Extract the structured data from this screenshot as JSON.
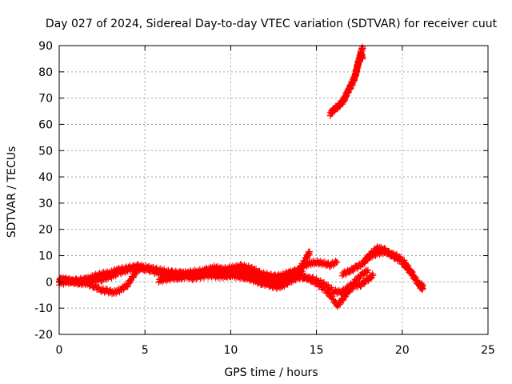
{
  "chart_data": {
    "type": "scatter",
    "title": "Day 027 of 2024, Sidereal Day-to-day VTEC variation (SDTVAR) for receiver cuut",
    "xlabel": "GPS time / hours",
    "ylabel": "SDTVAR / TECUs",
    "xlim": [
      0,
      25
    ],
    "ylim": [
      -20,
      90
    ],
    "xticks": [
      0,
      5,
      10,
      15,
      20,
      25
    ],
    "yticks": [
      -20,
      -10,
      0,
      10,
      20,
      30,
      40,
      50,
      60,
      70,
      80,
      90
    ],
    "grid": true,
    "marker": "+",
    "colors": {
      "series": "#ff0000",
      "axis": "#000000",
      "grid": "#a0a0a0"
    },
    "series": [
      {
        "name": "cuut",
        "tracks": [
          [
            [
              0.0,
              0.5
            ],
            [
              0.3,
              1.0
            ],
            [
              0.6,
              0.5
            ],
            [
              1.0,
              0.0
            ],
            [
              1.4,
              0.5
            ],
            [
              1.8,
              1.5
            ],
            [
              2.2,
              2.5
            ],
            [
              2.6,
              3.0
            ],
            [
              3.0,
              3.5
            ],
            [
              3.4,
              4.5
            ],
            [
              3.8,
              5.0
            ],
            [
              4.2,
              5.5
            ],
            [
              4.6,
              6.0
            ],
            [
              5.0,
              5.5
            ],
            [
              5.4,
              5.0
            ],
            [
              5.8,
              4.5
            ],
            [
              6.2,
              4.0
            ],
            [
              6.6,
              3.5
            ],
            [
              7.0,
              3.5
            ],
            [
              7.4,
              3.0
            ],
            [
              7.8,
              3.0
            ],
            [
              8.2,
              3.0
            ],
            [
              8.6,
              3.5
            ],
            [
              9.0,
              4.0
            ],
            [
              9.4,
              4.5
            ],
            [
              9.8,
              5.0
            ],
            [
              10.2,
              5.5
            ],
            [
              10.6,
              6.0
            ],
            [
              11.0,
              5.5
            ],
            [
              11.4,
              4.5
            ],
            [
              11.8,
              3.0
            ],
            [
              12.2,
              1.5
            ],
            [
              12.6,
              0.5
            ],
            [
              13.0,
              0.5
            ],
            [
              13.4,
              1.5
            ],
            [
              13.8,
              3.5
            ],
            [
              14.2,
              6.0
            ],
            [
              14.6,
              7.0
            ],
            [
              15.0,
              7.5
            ],
            [
              15.4,
              7.0
            ],
            [
              15.8,
              6.5
            ],
            [
              16.2,
              7.5
            ]
          ],
          [
            [
              0.0,
              1.0
            ],
            [
              0.4,
              0.5
            ],
            [
              0.8,
              0.0
            ],
            [
              1.2,
              -0.5
            ],
            [
              1.6,
              -0.5
            ],
            [
              2.0,
              -1.5
            ],
            [
              2.4,
              -3.0
            ],
            [
              2.8,
              -3.5
            ],
            [
              3.2,
              -4.0
            ],
            [
              3.6,
              -3.0
            ],
            [
              4.0,
              -1.0
            ],
            [
              4.3,
              2.0
            ],
            [
              4.6,
              5.0
            ],
            [
              5.0,
              5.5
            ],
            [
              5.4,
              5.0
            ],
            [
              5.8,
              4.0
            ],
            [
              6.2,
              3.0
            ],
            [
              6.6,
              2.0
            ],
            [
              7.0,
              2.0
            ],
            [
              7.4,
              2.5
            ],
            [
              7.8,
              3.0
            ],
            [
              8.2,
              3.5
            ],
            [
              8.6,
              4.5
            ],
            [
              9.0,
              5.5
            ],
            [
              9.4,
              5.0
            ],
            [
              9.8,
              4.0
            ],
            [
              10.2,
              3.0
            ],
            [
              10.6,
              2.0
            ],
            [
              11.0,
              1.5
            ],
            [
              11.4,
              0.5
            ],
            [
              11.8,
              -0.5
            ],
            [
              12.2,
              -1.0
            ],
            [
              12.6,
              -2.0
            ],
            [
              13.0,
              -1.5
            ],
            [
              13.4,
              0.0
            ],
            [
              13.8,
              1.5
            ],
            [
              14.2,
              2.0
            ],
            [
              14.6,
              1.0
            ],
            [
              15.0,
              -0.5
            ],
            [
              15.4,
              -2.5
            ],
            [
              15.8,
              -5.0
            ],
            [
              16.2,
              -9.0
            ],
            [
              16.5,
              -7.0
            ],
            [
              16.8,
              -4.0
            ],
            [
              17.2,
              -1.5
            ],
            [
              17.6,
              -1.0
            ],
            [
              18.0,
              1.0
            ],
            [
              18.3,
              2.5
            ]
          ],
          [
            [
              0.0,
              -0.5
            ],
            [
              0.5,
              0.0
            ],
            [
              1.0,
              0.5
            ],
            [
              1.5,
              1.0
            ],
            [
              2.0,
              0.5
            ],
            [
              2.5,
              1.0
            ],
            [
              3.0,
              2.0
            ],
            [
              3.5,
              3.5
            ],
            [
              4.0,
              4.5
            ],
            [
              4.5,
              5.5
            ],
            [
              5.0,
              5.0
            ],
            [
              5.5,
              4.0
            ],
            [
              6.0,
              3.0
            ],
            [
              6.5,
              2.5
            ],
            [
              7.0,
              3.0
            ],
            [
              7.5,
              3.5
            ],
            [
              8.0,
              4.0
            ],
            [
              8.5,
              4.0
            ],
            [
              9.0,
              3.5
            ],
            [
              9.5,
              3.0
            ],
            [
              10.0,
              2.5
            ],
            [
              10.5,
              2.0
            ],
            [
              11.0,
              2.0
            ],
            [
              11.5,
              1.5
            ],
            [
              12.0,
              1.0
            ],
            [
              12.5,
              1.0
            ],
            [
              13.0,
              1.5
            ],
            [
              13.5,
              3.0
            ],
            [
              14.0,
              5.0
            ],
            [
              14.4,
              9.0
            ],
            [
              14.6,
              11.5
            ]
          ],
          [
            [
              5.8,
              0.5
            ],
            [
              6.2,
              1.0
            ],
            [
              6.6,
              1.5
            ],
            [
              7.0,
              1.5
            ],
            [
              7.4,
              2.0
            ],
            [
              7.8,
              1.5
            ],
            [
              8.2,
              2.0
            ],
            [
              8.6,
              2.5
            ],
            [
              9.0,
              2.5
            ],
            [
              9.4,
              2.0
            ],
            [
              9.8,
              2.5
            ],
            [
              10.2,
              3.0
            ],
            [
              10.6,
              3.5
            ],
            [
              11.0,
              4.0
            ],
            [
              11.4,
              3.5
            ],
            [
              11.8,
              3.0
            ],
            [
              12.2,
              2.5
            ],
            [
              12.6,
              2.0
            ],
            [
              13.0,
              2.5
            ],
            [
              13.4,
              3.5
            ],
            [
              13.8,
              4.0
            ],
            [
              14.2,
              4.0
            ]
          ],
          [
            [
              14.0,
              2.0
            ],
            [
              14.4,
              1.5
            ],
            [
              14.8,
              1.0
            ],
            [
              15.2,
              0.0
            ],
            [
              15.6,
              -1.5
            ],
            [
              16.0,
              -3.5
            ],
            [
              16.4,
              -4.0
            ],
            [
              16.8,
              -2.5
            ],
            [
              17.2,
              0.0
            ],
            [
              17.6,
              2.5
            ],
            [
              18.0,
              4.5
            ]
          ],
          [
            [
              16.5,
              3.0
            ],
            [
              16.9,
              4.0
            ],
            [
              17.3,
              5.5
            ],
            [
              17.7,
              7.0
            ],
            [
              18.0,
              9.5
            ],
            [
              18.3,
              11.5
            ],
            [
              18.6,
              13.0
            ],
            [
              19.0,
              12.0
            ],
            [
              19.4,
              10.0
            ],
            [
              19.8,
              8.5
            ],
            [
              20.2,
              6.0
            ],
            [
              20.6,
              2.5
            ],
            [
              21.0,
              -1.5
            ],
            [
              21.2,
              -2.5
            ]
          ],
          [
            [
              17.8,
              8.0
            ],
            [
              18.2,
              10.0
            ],
            [
              18.6,
              11.0
            ],
            [
              19.0,
              11.5
            ],
            [
              19.4,
              10.5
            ],
            [
              19.8,
              9.5
            ],
            [
              20.2,
              7.0
            ],
            [
              20.6,
              3.0
            ],
            [
              21.0,
              -1.0
            ],
            [
              21.2,
              -1.5
            ]
          ],
          [
            [
              15.8,
              64.0
            ],
            [
              16.0,
              65.5
            ],
            [
              16.3,
              67.0
            ],
            [
              16.6,
              69.0
            ],
            [
              16.8,
              72.0
            ],
            [
              17.0,
              74.5
            ],
            [
              17.2,
              77.0
            ],
            [
              17.3,
              80.0
            ],
            [
              17.4,
              83.0
            ],
            [
              17.5,
              85.0
            ],
            [
              17.6,
              88.0
            ],
            [
              17.7,
              89.0
            ]
          ],
          [
            [
              15.9,
              65.0
            ],
            [
              16.2,
              66.5
            ],
            [
              16.5,
              68.5
            ],
            [
              16.7,
              71.0
            ],
            [
              16.9,
              73.5
            ],
            [
              17.1,
              76.5
            ],
            [
              17.3,
              79.0
            ],
            [
              17.4,
              82.0
            ],
            [
              17.5,
              84.5
            ],
            [
              17.6,
              86.5
            ],
            [
              17.7,
              85.5
            ]
          ]
        ]
      }
    ]
  }
}
